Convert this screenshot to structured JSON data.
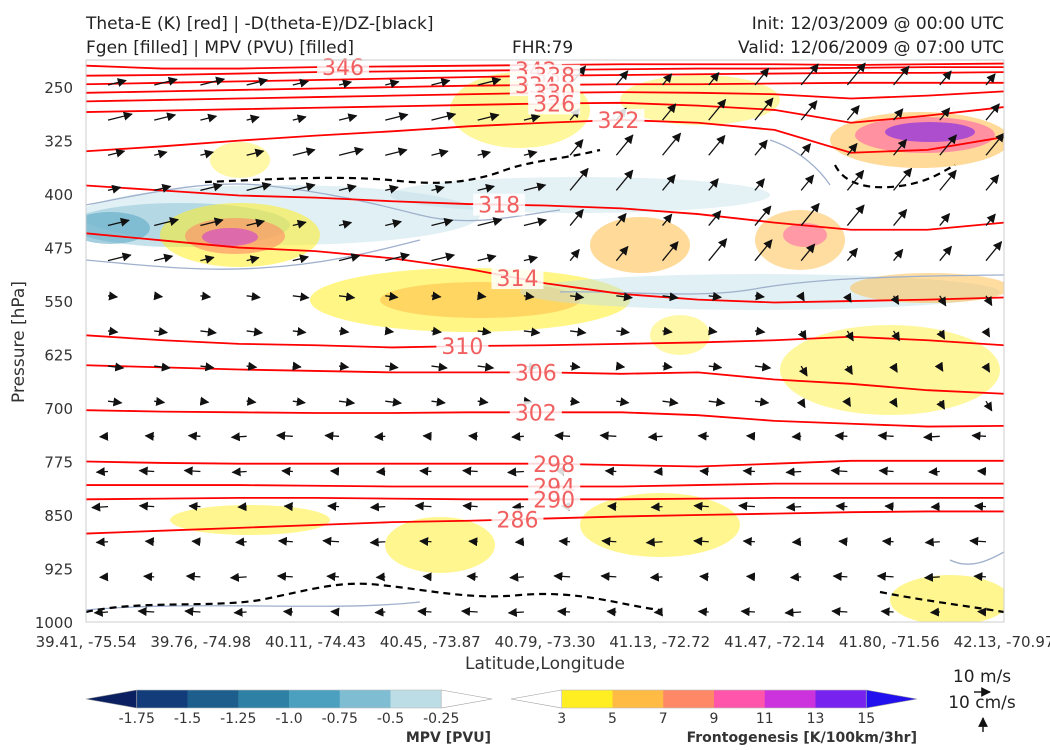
{
  "header": {
    "title_line1": "Theta-E (K) [red] | -D(theta-E)/DZ-[black]",
    "title_line2": "Fgen [filled] | MPV (PVU) [filled]",
    "fhr": "FHR:79",
    "init": "Init: 12/03/2009 @ 00:00 UTC",
    "valid": "Valid: 12/06/2009 @ 07:00 UTC"
  },
  "chart_data": {
    "type": "cross-section",
    "xlabel": "Latitude,Longitude",
    "ylabel": "Pressure [hPa]",
    "x_ticks": [
      "39.41, -75.54",
      "39.76, -74.98",
      "40.11, -74.43",
      "40.45, -73.87",
      "40.79, -73.30",
      "41.13, -72.72",
      "41.47, -72.14",
      "41.80, -71.56",
      "42.13, -70.97"
    ],
    "y_ticks": [
      250,
      325,
      400,
      475,
      550,
      625,
      700,
      775,
      850,
      925,
      1000
    ],
    "ylim": [
      1000,
      212
    ],
    "colors": {
      "theta_e": "#ff0000",
      "label": "#f06060",
      "frame": "#cccccc"
    },
    "theta_e_contours": [
      {
        "label": "346",
        "p": [
          220,
          224,
          224,
          222,
          221,
          220,
          219,
          218,
          218,
          218,
          219,
          218,
          217
        ],
        "label_x": 0.28
      },
      {
        "label": "342",
        "p": [
          234,
          233,
          231,
          229,
          228,
          227,
          226,
          225,
          224,
          224,
          223,
          222,
          222
        ],
        "label_x": 0.49
      },
      {
        "label": "338",
        "p": [
          246,
          244,
          242,
          240,
          238,
          236,
          234,
          233,
          232,
          231,
          230,
          230,
          229
        ],
        "label_x": 0.51
      },
      {
        "label": "334",
        "p": [
          258,
          256,
          254,
          252,
          250,
          248,
          247,
          246,
          246,
          245,
          244,
          244,
          244
        ],
        "label_x": 0.49
      },
      {
        "label": "330",
        "p": [
          270,
          268,
          266,
          264,
          262,
          260,
          258,
          257,
          258,
          260,
          266,
          262,
          256
        ],
        "label_x": 0.51
      },
      {
        "label": "326",
        "p": [
          285,
          283,
          281,
          279,
          277,
          275,
          273,
          272,
          276,
          282,
          300,
          290,
          278
        ],
        "label_x": 0.51
      },
      {
        "label": "322",
        "p": [
          340,
          333,
          325,
          318,
          312,
          305,
          300,
          296,
          300,
          310,
          342,
          338,
          320
        ],
        "label_x": 0.58
      },
      {
        "label": "318",
        "p": [
          388,
          395,
          402,
          405,
          410,
          414,
          416,
          420,
          428,
          440,
          450,
          450,
          440
        ],
        "label_x": 0.45
      },
      {
        "label": "314",
        "p": [
          455,
          465,
          475,
          480,
          490,
          505,
          525,
          540,
          548,
          552,
          550,
          548,
          545
        ],
        "label_x": 0.47
      },
      {
        "label": "310",
        "p": [
          598,
          605,
          610,
          612,
          615,
          613,
          612,
          610,
          608,
          605,
          600,
          605,
          612
        ],
        "label_x": 0.41
      },
      {
        "label": "306",
        "p": [
          640,
          643,
          646,
          648,
          650,
          650,
          650,
          652,
          650,
          660,
          666,
          675,
          680
        ],
        "label_x": 0.49
      },
      {
        "label": "302",
        "p": [
          703,
          705,
          706,
          707,
          707,
          706,
          706,
          706,
          710,
          718,
          722,
          726,
          725
        ],
        "label_x": 0.49
      },
      {
        "label": "298",
        "p": [
          775,
          777,
          778,
          778,
          778,
          778,
          778,
          780,
          782,
          778,
          774,
          774,
          774
        ],
        "label_x": 0.51
      },
      {
        "label": "294",
        "p": [
          808,
          808,
          808,
          809,
          810,
          810,
          810,
          810,
          808,
          806,
          806,
          806,
          806
        ],
        "label_x": 0.51
      },
      {
        "label": "290",
        "p": [
          828,
          827,
          826,
          826,
          827,
          828,
          828,
          828,
          827,
          826,
          826,
          826,
          826
        ],
        "label_x": 0.51
      },
      {
        "label": "286",
        "p": [
          876,
          872,
          868,
          864,
          860,
          858,
          855,
          852,
          850,
          848,
          846,
          845,
          845
        ],
        "label_x": 0.47
      }
    ],
    "mpv_colorbar": {
      "label": "MPV [PVU]",
      "ticks": [
        "-1.75",
        "-1.5",
        "-1.25",
        "-1.0",
        "-0.75",
        "-0.5",
        "-0.25"
      ],
      "colors": [
        "#0a2060",
        "#123d7a",
        "#1d5e8c",
        "#2e80a4",
        "#4ba0c0",
        "#7fbdd3",
        "#bcdde6",
        "#ffffff"
      ]
    },
    "fgen_colorbar": {
      "label": "Frontogenesis [K/100km/3hr]",
      "ticks": [
        "3",
        "5",
        "7",
        "9",
        "11",
        "13",
        "15"
      ],
      "colors": [
        "#ffffff",
        "#ffee22",
        "#ffbb44",
        "#ff8866",
        "#ff55aa",
        "#cc33dd",
        "#7722ee",
        "#2211ee"
      ]
    },
    "wind_legend": {
      "horizontal": "10 m/s",
      "vertical": "10 cm/s"
    }
  }
}
